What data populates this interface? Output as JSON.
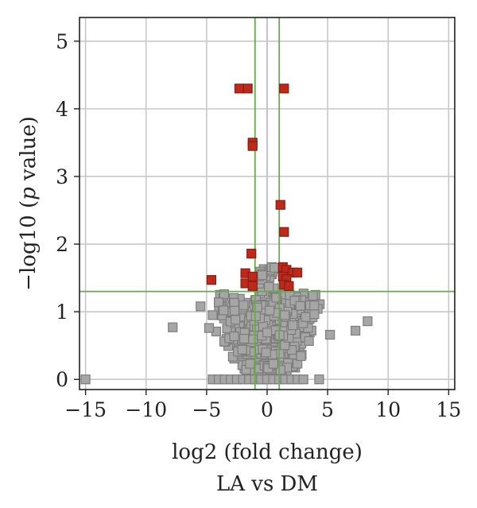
{
  "chart_data": {
    "type": "scatter",
    "xlabel": "log2 (fold change)",
    "ylabel_prefix": "−log10 (",
    "ylabel_italic": "p",
    "ylabel_suffix": " value)",
    "subtitle": "LA vs DM",
    "xlim": [
      -15.5,
      15.5
    ],
    "ylim": [
      -0.15,
      5.35
    ],
    "xticks": [
      -15,
      -10,
      -5,
      0,
      5,
      10,
      15
    ],
    "yticks": [
      0,
      1,
      2,
      3,
      4,
      5
    ],
    "grid": true,
    "thresholds": {
      "x": [
        -1,
        1
      ],
      "y": 1.3
    },
    "colors": {
      "significant": "#c0281c",
      "significant_edge": "#8a1c12",
      "nonsignificant": "#a6a6a6",
      "nonsignificant_edge": "#7c7c7c",
      "threshold": "#6aa84f",
      "grid": "#c8c8c8",
      "zero_line": "#b0b0dc"
    },
    "series": [
      {
        "significance": "significant",
        "points": [
          [
            -2.3,
            4.3
          ],
          [
            -1.6,
            4.3
          ],
          [
            1.4,
            4.3
          ],
          [
            -1.2,
            3.5
          ],
          [
            -1.2,
            3.45
          ],
          [
            1.1,
            2.58
          ],
          [
            1.4,
            2.18
          ],
          [
            -1.3,
            1.86
          ],
          [
            -4.6,
            1.47
          ],
          [
            -1.8,
            1.57
          ],
          [
            -1.8,
            1.42
          ],
          [
            -1.2,
            1.52
          ],
          [
            -1.2,
            1.38
          ],
          [
            1.3,
            1.66
          ],
          [
            1.6,
            1.62
          ],
          [
            2.1,
            1.58
          ],
          [
            2.5,
            1.58
          ],
          [
            1.3,
            1.52
          ],
          [
            1.6,
            1.48
          ],
          [
            1.4,
            1.4
          ],
          [
            1.8,
            1.38
          ]
        ]
      },
      {
        "significance": "non-significant",
        "points": [
          [
            -15,
            0
          ],
          [
            -7.8,
            0.77
          ],
          [
            7.3,
            0.72
          ],
          [
            8.3,
            0.86
          ],
          [
            5.2,
            0.66
          ],
          [
            -4.8,
            0.76
          ],
          [
            -5.5,
            1.08
          ],
          [
            -4.5,
            0.95
          ],
          [
            -4.0,
            1.14
          ],
          [
            -3.6,
            1.02
          ],
          [
            -4.5,
            0.0
          ],
          [
            -4.0,
            0.0
          ],
          [
            -3.5,
            0.0
          ],
          [
            -3.0,
            0.0
          ],
          [
            -2.5,
            0.0
          ],
          [
            -2.0,
            0.0
          ],
          [
            -1.5,
            0.0
          ],
          [
            -1.0,
            0.0
          ],
          [
            -0.5,
            0.0
          ],
          [
            0.0,
            0.0
          ],
          [
            0.5,
            0.0
          ],
          [
            1.0,
            0.0
          ],
          [
            1.5,
            0.0
          ],
          [
            2.0,
            0.0
          ],
          [
            2.5,
            0.0
          ],
          [
            3.0,
            0.0
          ],
          [
            4.3,
            0.0
          ]
        ]
      }
    ]
  }
}
